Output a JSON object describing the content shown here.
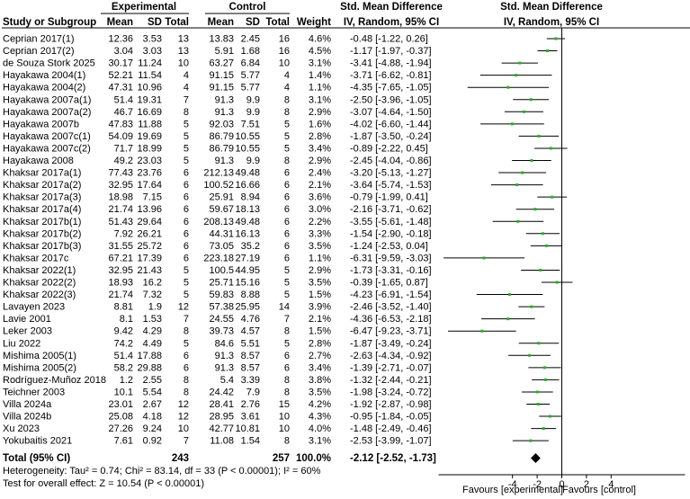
{
  "header": {
    "group1": "Experimental",
    "group2": "Control",
    "effect_measure": "Std. Mean Difference",
    "effect_method_table": "IV, Random, 95% CI",
    "effect_method_plot": "IV, Random, 95% CI",
    "columns": [
      "Study or Subgroup",
      "Mean",
      "SD",
      "Total",
      "Mean",
      "SD",
      "Total",
      "Weight"
    ]
  },
  "chart_data": {
    "type": "forest",
    "xlim": [
      -10,
      10
    ],
    "ticks": [
      -4,
      -2,
      0,
      2,
      4
    ],
    "xlabel_left": "Favours [experimental]",
    "xlabel_right": "Favours [control]",
    "studies": [
      {
        "name": "Ceprian 2017(1)",
        "e_mean": "12.36",
        "e_sd": "3.53",
        "e_n": "13",
        "c_mean": "13.83",
        "c_sd": "2.45",
        "c_n": "16",
        "weight": "4.6%",
        "ci_text": "-0.48 [-1.22, 0.26]",
        "smd": -0.48,
        "lo": -1.22,
        "hi": 0.26
      },
      {
        "name": "Ceprian 2017(2)",
        "e_mean": "3.04",
        "e_sd": "3.03",
        "e_n": "13",
        "c_mean": "5.91",
        "c_sd": "1.68",
        "c_n": "16",
        "weight": "4.5%",
        "ci_text": "-1.17 [-1.97, -0.37]",
        "smd": -1.17,
        "lo": -1.97,
        "hi": -0.37
      },
      {
        "name": "de Souza Stork 2025",
        "e_mean": "30.17",
        "e_sd": "11.24",
        "e_n": "10",
        "c_mean": "63.27",
        "c_sd": "6.84",
        "c_n": "10",
        "weight": "3.1%",
        "ci_text": "-3.41 [-4.88, -1.94]",
        "smd": -3.41,
        "lo": -4.88,
        "hi": -1.94
      },
      {
        "name": "Hayakawa 2004(1)",
        "e_mean": "52.21",
        "e_sd": "11.54",
        "e_n": "4",
        "c_mean": "91.15",
        "c_sd": "5.77",
        "c_n": "4",
        "weight": "1.4%",
        "ci_text": "-3.71 [-6.62, -0.81]",
        "smd": -3.71,
        "lo": -6.62,
        "hi": -0.81
      },
      {
        "name": "Hayakawa 2004(2)",
        "e_mean": "47.31",
        "e_sd": "10.96",
        "e_n": "4",
        "c_mean": "91.15",
        "c_sd": "5.77",
        "c_n": "4",
        "weight": "1.1%",
        "ci_text": "-4.35 [-7.65, -1.05]",
        "smd": -4.35,
        "lo": -7.65,
        "hi": -1.05
      },
      {
        "name": "Hayakawa 2007a(1)",
        "e_mean": "51.4",
        "e_sd": "19.31",
        "e_n": "7",
        "c_mean": "91.3",
        "c_sd": "9.9",
        "c_n": "8",
        "weight": "3.1%",
        "ci_text": "-2.50 [-3.96, -1.05]",
        "smd": -2.5,
        "lo": -3.96,
        "hi": -1.05
      },
      {
        "name": "Hayakawa 2007a(2)",
        "e_mean": "46.7",
        "e_sd": "16.69",
        "e_n": "8",
        "c_mean": "91.3",
        "c_sd": "9.9",
        "c_n": "8",
        "weight": "2.9%",
        "ci_text": "-3.07 [-4.64, -1.50]",
        "smd": -3.07,
        "lo": -4.64,
        "hi": -1.5
      },
      {
        "name": "Hayakawa 2007b",
        "e_mean": "47.83",
        "e_sd": "11.88",
        "e_n": "5",
        "c_mean": "92.03",
        "c_sd": "7.51",
        "c_n": "5",
        "weight": "1.6%",
        "ci_text": "-4.02 [-6.60, -1.44]",
        "smd": -4.02,
        "lo": -6.6,
        "hi": -1.44
      },
      {
        "name": "Hayakawa 2007c(1)",
        "e_mean": "54.09",
        "e_sd": "19.69",
        "e_n": "5",
        "c_mean": "86.79",
        "c_sd": "10.55",
        "c_n": "5",
        "weight": "2.8%",
        "ci_text": "-1.87 [-3.50, -0.24]",
        "smd": -1.87,
        "lo": -3.5,
        "hi": -0.24
      },
      {
        "name": "Hayakawa 2007c(2)",
        "e_mean": "71.7",
        "e_sd": "18.99",
        "e_n": "5",
        "c_mean": "86.79",
        "c_sd": "10.55",
        "c_n": "5",
        "weight": "3.4%",
        "ci_text": "-0.89 [-2.22, 0.45]",
        "smd": -0.89,
        "lo": -2.22,
        "hi": 0.45
      },
      {
        "name": "Hayakawa 2008",
        "e_mean": "49.2",
        "e_sd": "23.03",
        "e_n": "5",
        "c_mean": "91.3",
        "c_sd": "9.9",
        "c_n": "8",
        "weight": "2.9%",
        "ci_text": "-2.45 [-4.04, -0.86]",
        "smd": -2.45,
        "lo": -4.04,
        "hi": -0.86
      },
      {
        "name": "Khaksar 2017a(1)",
        "e_mean": "77.43",
        "e_sd": "23.76",
        "e_n": "6",
        "c_mean": "212.13",
        "c_sd": "49.48",
        "c_n": "6",
        "weight": "2.4%",
        "ci_text": "-3.20 [-5.13, -1.27]",
        "smd": -3.2,
        "lo": -5.13,
        "hi": -1.27
      },
      {
        "name": "Khaksar 2017a(2)",
        "e_mean": "32.95",
        "e_sd": "17.64",
        "e_n": "6",
        "c_mean": "100.52",
        "c_sd": "16.66",
        "c_n": "6",
        "weight": "2.1%",
        "ci_text": "-3.64 [-5.74, -1.53]",
        "smd": -3.64,
        "lo": -5.74,
        "hi": -1.53
      },
      {
        "name": "Khaksar 2017a(3)",
        "e_mean": "18.98",
        "e_sd": "7.15",
        "e_n": "6",
        "c_mean": "25.91",
        "c_sd": "8.94",
        "c_n": "6",
        "weight": "3.6%",
        "ci_text": "-0.79 [-1.99, 0.41]",
        "smd": -0.79,
        "lo": -1.99,
        "hi": 0.41
      },
      {
        "name": "Khaksar 2017a(4)",
        "e_mean": "21.74",
        "e_sd": "13.96",
        "e_n": "6",
        "c_mean": "59.67",
        "c_sd": "18.13",
        "c_n": "6",
        "weight": "3.0%",
        "ci_text": "-2.16 [-3.71, -0.62]",
        "smd": -2.16,
        "lo": -3.71,
        "hi": -0.62
      },
      {
        "name": "Khaksar 2017b(1)",
        "e_mean": "51.43",
        "e_sd": "29.64",
        "e_n": "6",
        "c_mean": "208.13",
        "c_sd": "49.48",
        "c_n": "6",
        "weight": "2.2%",
        "ci_text": "-3.55 [-5.61, -1.48]",
        "smd": -3.55,
        "lo": -5.61,
        "hi": -1.48
      },
      {
        "name": "Khaksar 2017b(2)",
        "e_mean": "7.92",
        "e_sd": "26.21",
        "e_n": "6",
        "c_mean": "44.31",
        "c_sd": "16.13",
        "c_n": "6",
        "weight": "3.3%",
        "ci_text": "-1.54 [-2.90, -0.18]",
        "smd": -1.54,
        "lo": -2.9,
        "hi": -0.18
      },
      {
        "name": "Khaksar 2017b(3)",
        "e_mean": "31.55",
        "e_sd": "25.72",
        "e_n": "6",
        "c_mean": "73.05",
        "c_sd": "35.2",
        "c_n": "6",
        "weight": "3.5%",
        "ci_text": "-1.24 [-2.53, 0.04]",
        "smd": -1.24,
        "lo": -2.53,
        "hi": 0.04
      },
      {
        "name": "Khaksar 2017c",
        "e_mean": "67.21",
        "e_sd": "17.39",
        "e_n": "6",
        "c_mean": "223.18",
        "c_sd": "27.19",
        "c_n": "6",
        "weight": "1.1%",
        "ci_text": "-6.31 [-9.59, -3.03]",
        "smd": -6.31,
        "lo": -9.59,
        "hi": -3.03
      },
      {
        "name": "Khaksar 2022(1)",
        "e_mean": "32.95",
        "e_sd": "21.43",
        "e_n": "5",
        "c_mean": "100.5",
        "c_sd": "44.95",
        "c_n": "5",
        "weight": "2.9%",
        "ci_text": "-1.73 [-3.31, -0.16]",
        "smd": -1.73,
        "lo": -3.31,
        "hi": -0.16
      },
      {
        "name": "Khaksar 2022(2)",
        "e_mean": "18.93",
        "e_sd": "16.2",
        "e_n": "5",
        "c_mean": "25.71",
        "c_sd": "15.16",
        "c_n": "5",
        "weight": "3.5%",
        "ci_text": "-0.39 [-1.65, 0.87]",
        "smd": -0.39,
        "lo": -1.65,
        "hi": 0.87
      },
      {
        "name": "Khaksar 2022(3)",
        "e_mean": "21.74",
        "e_sd": "7.32",
        "e_n": "5",
        "c_mean": "59.83",
        "c_sd": "8.88",
        "c_n": "5",
        "weight": "1.5%",
        "ci_text": "-4.23 [-6.91, -1.54]",
        "smd": -4.23,
        "lo": -6.91,
        "hi": -1.54
      },
      {
        "name": "Lavayen 2023",
        "e_mean": "8.81",
        "e_sd": "1.9",
        "e_n": "12",
        "c_mean": "57.38",
        "c_sd": "25.95",
        "c_n": "14",
        "weight": "3.9%",
        "ci_text": "-2.46 [-3.52, -1.40]",
        "smd": -2.46,
        "lo": -3.52,
        "hi": -1.4
      },
      {
        "name": "Lavie 2001",
        "e_mean": "8.1",
        "e_sd": "1.53",
        "e_n": "7",
        "c_mean": "24.55",
        "c_sd": "4.76",
        "c_n": "7",
        "weight": "2.1%",
        "ci_text": "-4.36 [-6.53, -2.18]",
        "smd": -4.36,
        "lo": -6.53,
        "hi": -2.18
      },
      {
        "name": "Leker 2003",
        "e_mean": "9.42",
        "e_sd": "4.29",
        "e_n": "8",
        "c_mean": "39.73",
        "c_sd": "4.57",
        "c_n": "8",
        "weight": "1.5%",
        "ci_text": "-6.47 [-9.23, -3.71]",
        "smd": -6.47,
        "lo": -9.23,
        "hi": -3.71
      },
      {
        "name": "Liu 2022",
        "e_mean": "74.2",
        "e_sd": "4.49",
        "e_n": "5",
        "c_mean": "84.6",
        "c_sd": "5.51",
        "c_n": "5",
        "weight": "2.8%",
        "ci_text": "-1.87 [-3.49, -0.24]",
        "smd": -1.87,
        "lo": -3.49,
        "hi": -0.24
      },
      {
        "name": "Mishima 2005(1)",
        "e_mean": "51.4",
        "e_sd": "17.88",
        "e_n": "6",
        "c_mean": "91.3",
        "c_sd": "8.57",
        "c_n": "6",
        "weight": "2.7%",
        "ci_text": "-2.63 [-4.34, -0.92]",
        "smd": -2.63,
        "lo": -4.34,
        "hi": -0.92
      },
      {
        "name": "Mishima 2005(2)",
        "e_mean": "58.2",
        "e_sd": "29.88",
        "e_n": "6",
        "c_mean": "91.3",
        "c_sd": "8.57",
        "c_n": "6",
        "weight": "3.4%",
        "ci_text": "-1.39 [-2.71, -0.07]",
        "smd": -1.39,
        "lo": -2.71,
        "hi": -0.07
      },
      {
        "name": "Rodríguez-Muñoz 2018",
        "e_mean": "1.2",
        "e_sd": "2.55",
        "e_n": "8",
        "c_mean": "5.4",
        "c_sd": "3.39",
        "c_n": "8",
        "weight": "3.8%",
        "ci_text": "-1.32 [-2.44, -0.21]",
        "smd": -1.32,
        "lo": -2.44,
        "hi": -0.21
      },
      {
        "name": "Teichner 2003",
        "e_mean": "10.1",
        "e_sd": "5.54",
        "e_n": "8",
        "c_mean": "24.42",
        "c_sd": "7.9",
        "c_n": "8",
        "weight": "3.5%",
        "ci_text": "-1.98 [-3.24, -0.72]",
        "smd": -1.98,
        "lo": -3.24,
        "hi": -0.72
      },
      {
        "name": "Villa 2024a",
        "e_mean": "23.01",
        "e_sd": "2.67",
        "e_n": "12",
        "c_mean": "28.41",
        "c_sd": "2.76",
        "c_n": "15",
        "weight": "4.2%",
        "ci_text": "-1.92 [-2.87, -0.98]",
        "smd": -1.92,
        "lo": -2.87,
        "hi": -0.98
      },
      {
        "name": "Villa 2024b",
        "e_mean": "25.08",
        "e_sd": "4.18",
        "e_n": "12",
        "c_mean": "28.95",
        "c_sd": "3.61",
        "c_n": "10",
        "weight": "4.3%",
        "ci_text": "-0.95 [-1.84, -0.05]",
        "smd": -0.95,
        "lo": -1.84,
        "hi": -0.05
      },
      {
        "name": "Xu 2023",
        "e_mean": "27.26",
        "e_sd": "9.24",
        "e_n": "10",
        "c_mean": "42.77",
        "c_sd": "10.81",
        "c_n": "10",
        "weight": "4.0%",
        "ci_text": "-1.48 [-2.49, -0.46]",
        "smd": -1.48,
        "lo": -2.49,
        "hi": -0.46
      },
      {
        "name": "Yokubaitis 2021",
        "e_mean": "7.61",
        "e_sd": "0.92",
        "e_n": "7",
        "c_mean": "11.08",
        "c_sd": "1.54",
        "c_n": "8",
        "weight": "3.1%",
        "ci_text": "-2.53 [-3.99, -1.07]",
        "smd": -2.53,
        "lo": -3.99,
        "hi": -1.07
      }
    ],
    "total": {
      "label": "Total (95% CI)",
      "e_n": "243",
      "c_n": "257",
      "weight": "100.0%",
      "ci_text": "-2.12 [-2.52, -1.73]",
      "smd": -2.12,
      "lo": -2.52,
      "hi": -1.73
    },
    "heterogeneity": "Heterogeneity: Tau² = 0.74; Chi² = 83.14, df = 33 (P < 0.00001); I² = 60%",
    "overall_effect": "Test for overall effect: Z = 10.54 (P < 0.00001)",
    "colors": {
      "point": "#22b322",
      "line": "#000000",
      "diamond": "#000000"
    }
  }
}
